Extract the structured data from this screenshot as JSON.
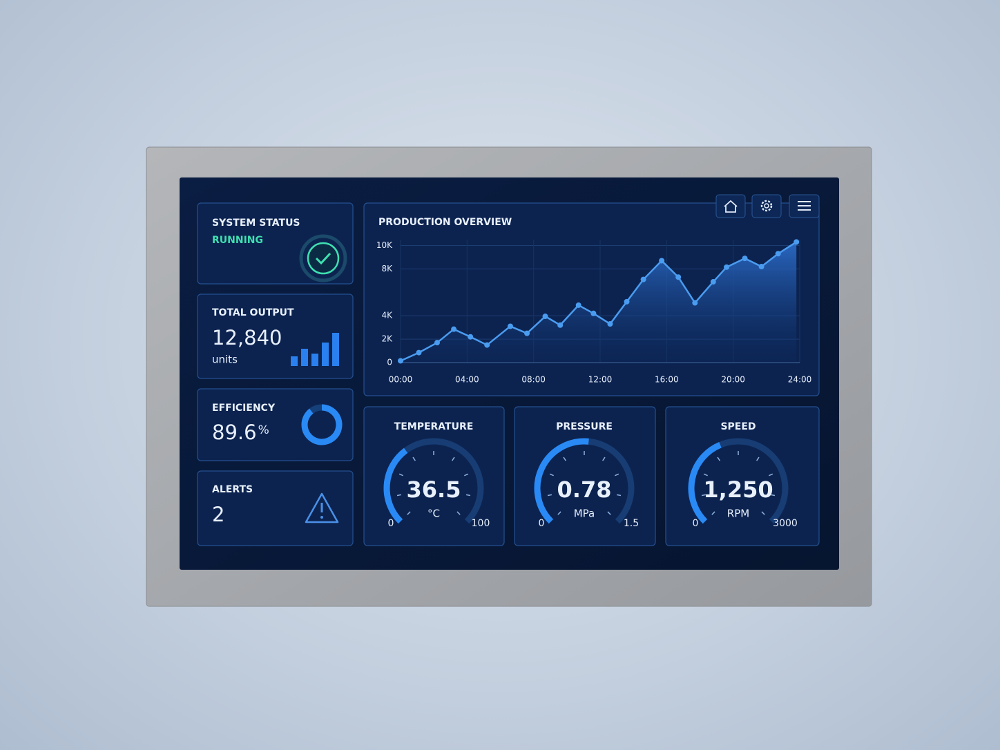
{
  "status": {
    "title": "SYSTEM STATUS",
    "state": "RUNNING"
  },
  "output": {
    "title": "TOTAL OUTPUT",
    "value": 12840,
    "value_label": "12,840",
    "unit": "units"
  },
  "efficiency": {
    "title": "EFFICIENCY",
    "value": 89.6,
    "unit": "%"
  },
  "alerts": {
    "title": "ALERTS",
    "value": 2
  },
  "chart_data": {
    "type": "line",
    "title": "PRODUCTION OVERVIEW",
    "x": [
      0,
      1.1,
      2.2,
      3.2,
      4.2,
      5.2,
      6.6,
      7.6,
      8.7,
      9.6,
      10.7,
      11.6,
      12.6,
      13.6,
      14.6,
      15.7,
      16.7,
      17.7,
      18.8,
      19.6,
      20.7,
      21.7,
      22.7,
      23.8
    ],
    "values": [
      150,
      850,
      1700,
      2850,
      2200,
      1500,
      3100,
      2500,
      3950,
      3200,
      4900,
      4200,
      3300,
      5200,
      7100,
      8700,
      7300,
      5100,
      6900,
      8150,
      8900,
      8200,
      9300,
      10300
    ],
    "color": "#4a9cf0",
    "xlim": [
      0,
      24
    ],
    "xticks": [
      {
        "value": 0,
        "label": "00:00"
      },
      {
        "value": 4,
        "label": "04:00"
      },
      {
        "value": 8,
        "label": "08:00"
      },
      {
        "value": 12,
        "label": "12:00"
      },
      {
        "value": 16,
        "label": "16:00"
      },
      {
        "value": 20,
        "label": "20:00"
      },
      {
        "value": 24,
        "label": "24:00"
      }
    ],
    "ylim": [
      0,
      10500
    ],
    "yticks": [
      0,
      {
        "value": 2000,
        "label": "2K"
      },
      {
        "value": 4000,
        "label": "4K"
      },
      {
        "value": 8000,
        "label": "8K"
      },
      {
        "value": 10000,
        "label": "10K"
      }
    ],
    "grid": true
  },
  "gauges": [
    {
      "title": "TEMPERATURE",
      "value": 36.5,
      "unit": "°C",
      "min": 0,
      "max": 100
    },
    {
      "title": "PRESSURE",
      "value": 0.78,
      "unit": "MPa",
      "min": 0,
      "max": 1.5
    },
    {
      "title": "SPEED",
      "value": 1250,
      "value_label": "1,250",
      "unit": "RPM",
      "min": 0,
      "max": 3000
    }
  ]
}
